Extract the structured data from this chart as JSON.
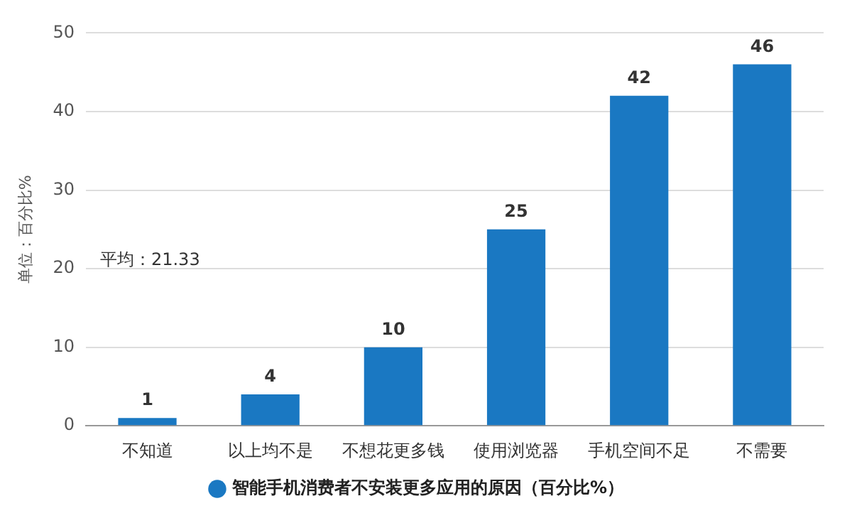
{
  "chart_data": {
    "type": "bar",
    "ylabel": "单位：百分比%",
    "categories": [
      "不知道",
      "以上均不是",
      "不想花更多钱",
      "使用浏览器",
      "手机空间不足",
      "不需要"
    ],
    "series": [
      {
        "name": "智能手机消费者不安装更多应用的原因（百分比%）",
        "color": "#1a78c2",
        "values": [
          1,
          4,
          10,
          25,
          42,
          46
        ]
      }
    ],
    "ylim": [
      0,
      50
    ],
    "yticks": [
      0,
      10,
      20,
      30,
      40,
      50
    ],
    "grid": "y",
    "legend": "bottom",
    "data_labels": true,
    "annotations": [
      "平均：21.33"
    ]
  }
}
